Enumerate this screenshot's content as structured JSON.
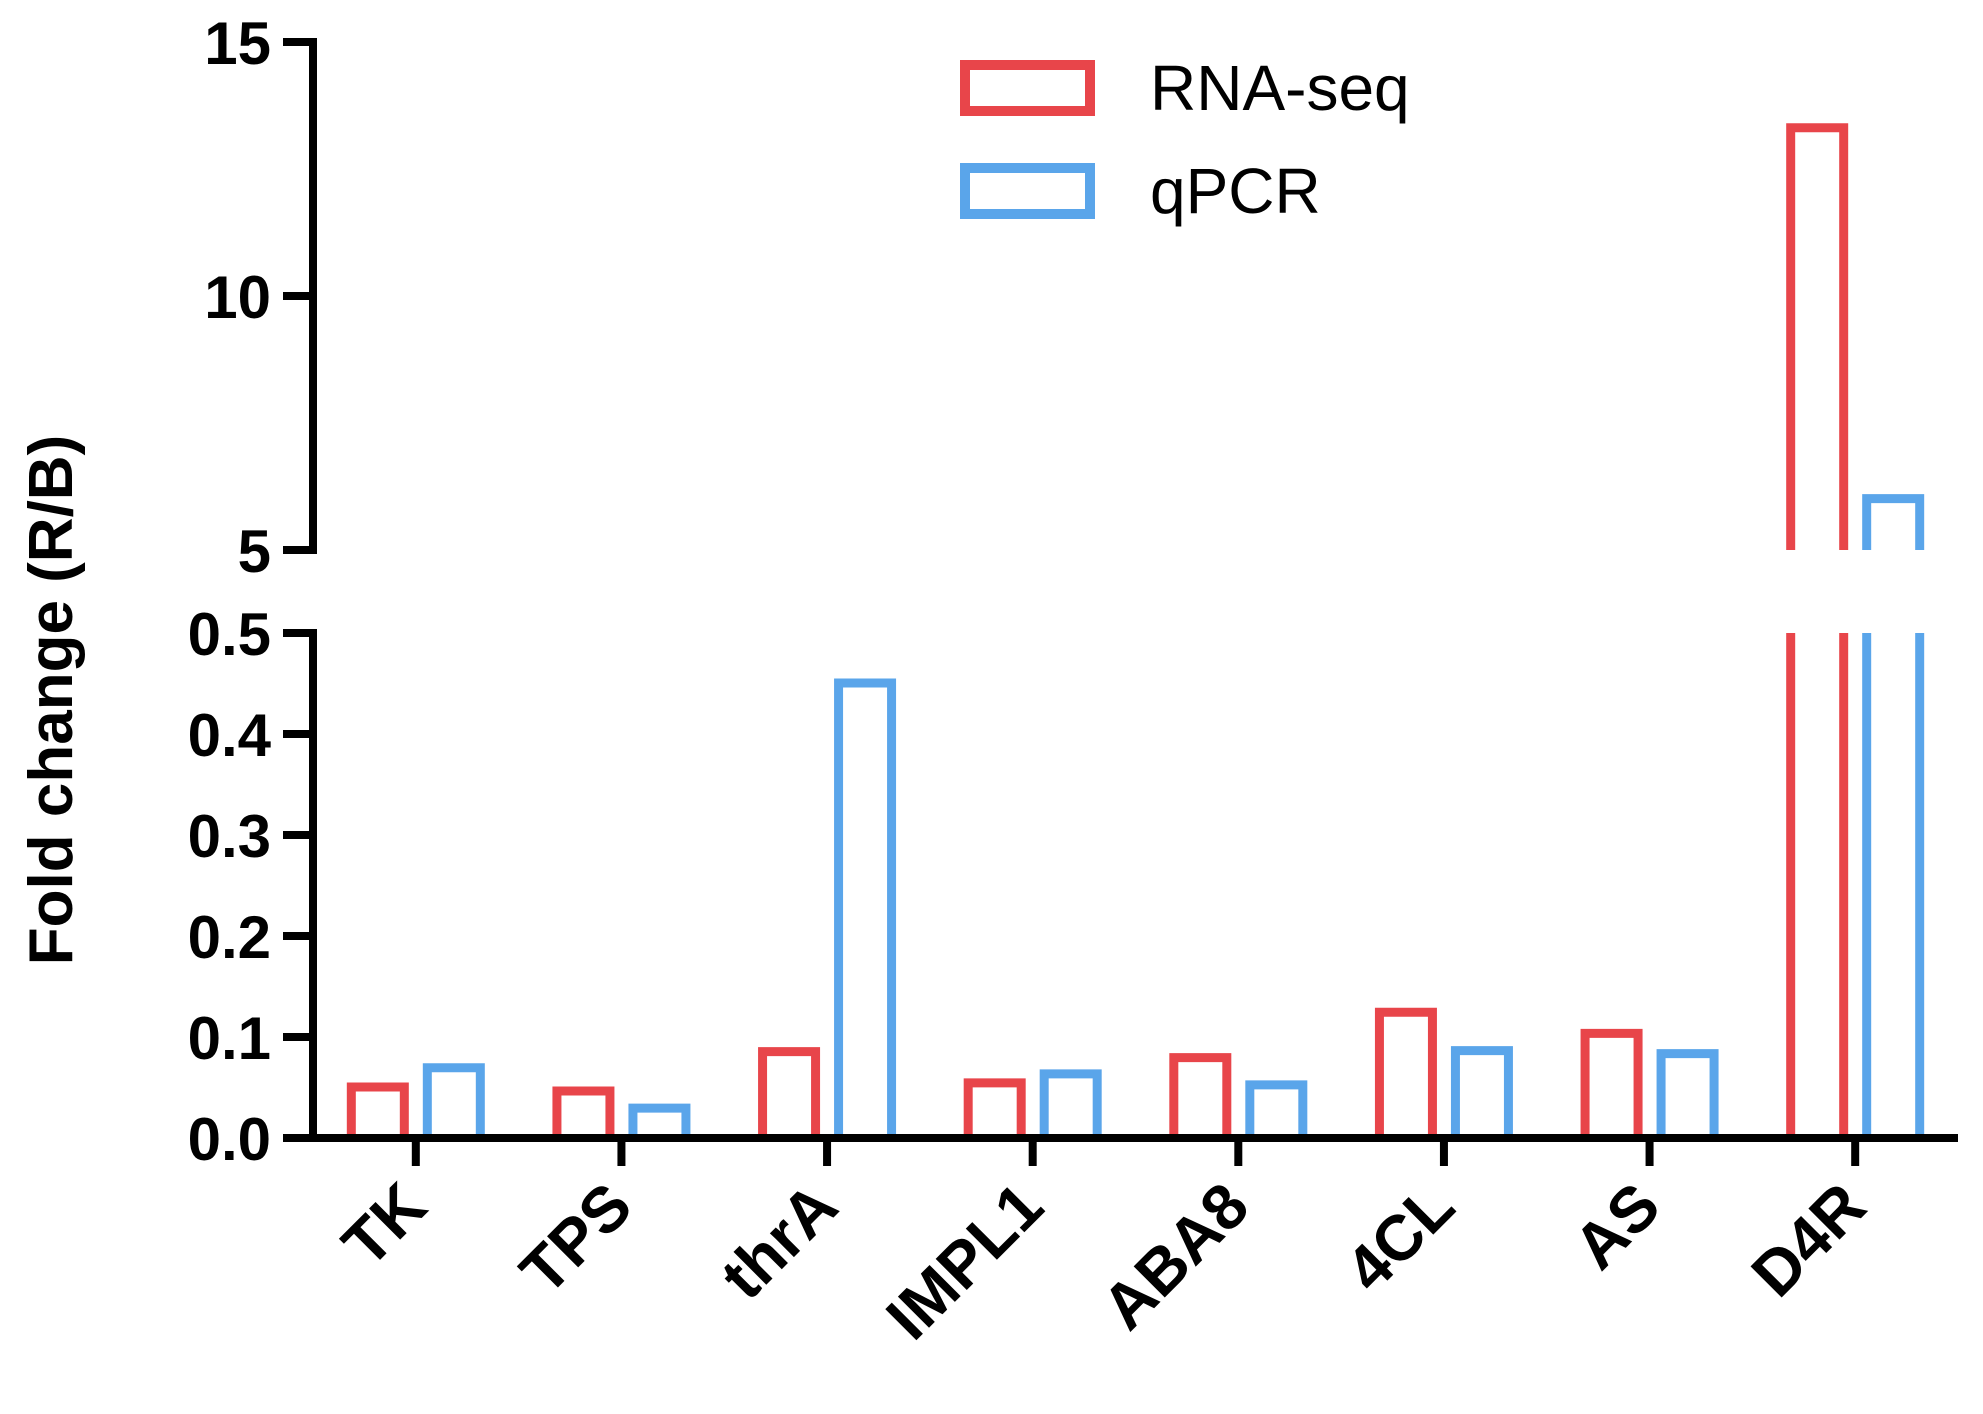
{
  "chart_data": {
    "type": "bar",
    "title": "",
    "xlabel": "",
    "ylabel": "Fold change (R/B)",
    "categories": [
      "TK",
      "TPS",
      "thrA",
      "IMPL1",
      "ABA8",
      "4CL",
      "AS",
      "D4R"
    ],
    "series": [
      {
        "name": "RNA-seq",
        "color": "#e8454a",
        "values": [
          0.055,
          0.051,
          0.09,
          0.059,
          0.084,
          0.129,
          0.108,
          13.4
        ]
      },
      {
        "name": "qPCR",
        "color": "#5aa5ea",
        "values": [
          0.074,
          0.034,
          0.455,
          0.068,
          0.057,
          0.091,
          0.088,
          6.1
        ]
      }
    ],
    "y_axis_broken": true,
    "y_lower_segment": {
      "range": [
        0,
        0.5
      ],
      "ticks": [
        "0.0",
        "0.1",
        "0.2",
        "0.3",
        "0.4",
        "0.5"
      ]
    },
    "y_upper_segment": {
      "range": [
        5,
        15
      ],
      "ticks": [
        "5",
        "10",
        "15"
      ]
    },
    "bar_style": "outline",
    "grid": false,
    "legend_position": "top-center"
  }
}
